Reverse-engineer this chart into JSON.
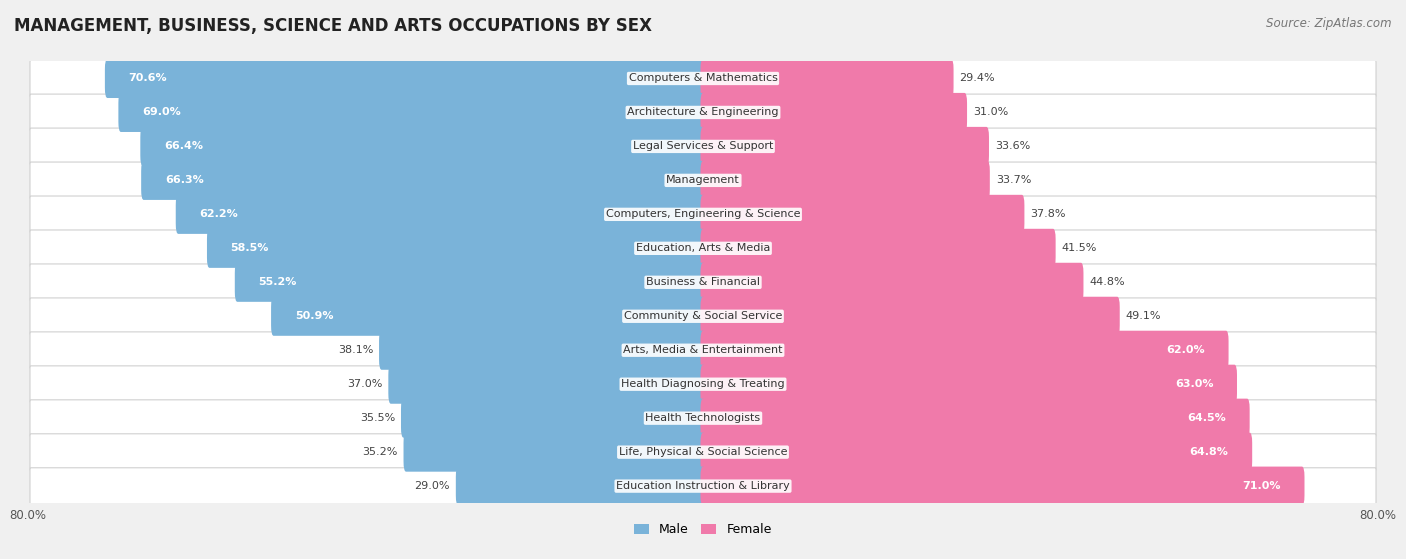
{
  "title": "MANAGEMENT, BUSINESS, SCIENCE AND ARTS OCCUPATIONS BY SEX",
  "source": "Source: ZipAtlas.com",
  "categories": [
    "Computers & Mathematics",
    "Architecture & Engineering",
    "Legal Services & Support",
    "Management",
    "Computers, Engineering & Science",
    "Education, Arts & Media",
    "Business & Financial",
    "Community & Social Service",
    "Arts, Media & Entertainment",
    "Health Diagnosing & Treating",
    "Health Technologists",
    "Life, Physical & Social Science",
    "Education Instruction & Library"
  ],
  "male_pct": [
    70.6,
    69.0,
    66.4,
    66.3,
    62.2,
    58.5,
    55.2,
    50.9,
    38.1,
    37.0,
    35.5,
    35.2,
    29.0
  ],
  "female_pct": [
    29.4,
    31.0,
    33.6,
    33.7,
    37.8,
    41.5,
    44.8,
    49.1,
    62.0,
    63.0,
    64.5,
    64.8,
    71.0
  ],
  "male_color": "#7ab3d9",
  "female_color": "#f07aaa",
  "axis_limit": 80.0,
  "background_color": "#f0f0f0",
  "bar_row_bg_color": "#e8e8e8",
  "bar_row_bg_color2": "#ffffff",
  "bar_height": 0.55,
  "title_fontsize": 12,
  "source_fontsize": 8.5,
  "label_fontsize": 8,
  "category_fontsize": 8,
  "legend_fontsize": 9,
  "axis_label_fontsize": 8.5
}
